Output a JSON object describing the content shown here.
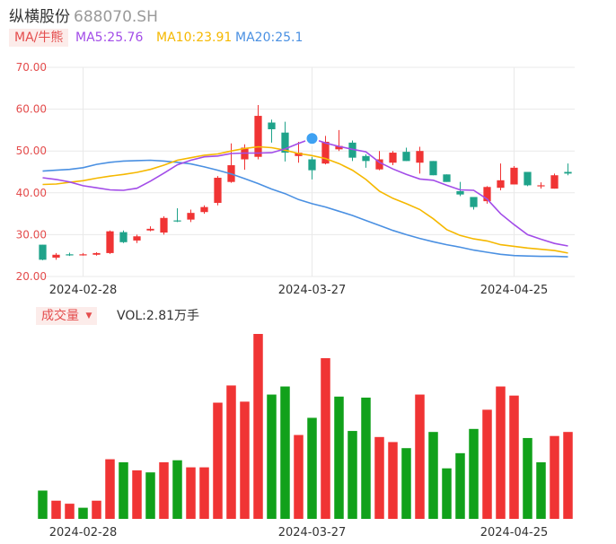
{
  "header": {
    "name": "纵横股份",
    "code": "688070.SH"
  },
  "legend": {
    "ma_tag": "MA/牛熊",
    "ma5": "MA5:25.76",
    "ma10": "MA10:23.91",
    "ma20": "MA20:25.1"
  },
  "volume": {
    "tag": "成交量",
    "label": "VOL:2.81万手"
  },
  "colors": {
    "up": "#f03434",
    "down": "#1fa38a",
    "vol_down": "#11a11b",
    "ma5": "#a24ce8",
    "ma10": "#f5b800",
    "ma20": "#4a90e2",
    "axis_label": "#e44d4d",
    "grid": "#e9e9e9"
  },
  "chart_data": [
    {
      "type": "candlestick",
      "title": "",
      "ylim": [
        20,
        70
      ],
      "y_ticks": [
        "70.00",
        "60.00",
        "50.00",
        "40.00",
        "30.00",
        "20.00"
      ],
      "x_tick_labels": [
        {
          "index": 3,
          "label": "2024-02-28"
        },
        {
          "index": 20,
          "label": "2024-03-27"
        },
        {
          "index": 35,
          "label": "2024-04-25"
        }
      ],
      "grid": true,
      "ohlc": [
        [
          27.6,
          27.6,
          23.9,
          24.0
        ],
        [
          24.5,
          25.6,
          24.0,
          25.2
        ],
        [
          25.3,
          25.7,
          24.9,
          25.2
        ],
        [
          25.3,
          25.6,
          25.0,
          25.3
        ],
        [
          25.2,
          25.8,
          25.0,
          25.6
        ],
        [
          25.6,
          31.0,
          25.4,
          30.8
        ],
        [
          30.6,
          31.0,
          28.0,
          28.2
        ],
        [
          28.6,
          30.0,
          28.0,
          29.6
        ],
        [
          31.0,
          32.0,
          30.8,
          31.4
        ],
        [
          30.5,
          34.4,
          30.0,
          34.0
        ],
        [
          33.4,
          36.3,
          33.0,
          33.3
        ],
        [
          33.6,
          36.0,
          33.0,
          35.2
        ],
        [
          35.4,
          37.0,
          35.0,
          36.6
        ],
        [
          37.6,
          44.0,
          37.0,
          43.6
        ],
        [
          42.6,
          51.8,
          42.4,
          46.6
        ],
        [
          48.0,
          51.6,
          45.5,
          50.8
        ],
        [
          48.6,
          61.0,
          48.0,
          58.4
        ],
        [
          56.8,
          57.5,
          52.0,
          55.2
        ],
        [
          54.4,
          57.0,
          47.5,
          49.6
        ],
        [
          48.8,
          52.2,
          47.2,
          49.6
        ],
        [
          48.0,
          48.6,
          43.2,
          45.4
        ],
        [
          47.0,
          53.6,
          46.8,
          52.2
        ],
        [
          50.4,
          55.0,
          50.0,
          51.2
        ],
        [
          52.0,
          52.5,
          47.6,
          48.4
        ],
        [
          48.8,
          49.2,
          46.0,
          47.6
        ],
        [
          45.6,
          50.0,
          45.4,
          48.0
        ],
        [
          47.2,
          50.0,
          46.6,
          49.6
        ],
        [
          49.8,
          50.8,
          47.6,
          47.6
        ],
        [
          47.2,
          51.0,
          44.6,
          50.0
        ],
        [
          47.6,
          47.6,
          44.2,
          44.2
        ],
        [
          44.4,
          44.4,
          42.6,
          42.6
        ],
        [
          40.4,
          42.6,
          39.2,
          39.6
        ],
        [
          39.0,
          39.0,
          36.0,
          36.6
        ],
        [
          38.0,
          41.6,
          37.4,
          41.4
        ],
        [
          41.2,
          47.0,
          40.6,
          43.0
        ],
        [
          42.0,
          46.4,
          42.0,
          46.0
        ],
        [
          45.0,
          45.0,
          41.6,
          41.8
        ],
        [
          41.6,
          42.5,
          41.0,
          41.8
        ],
        [
          41.0,
          44.6,
          41.0,
          44.2
        ],
        [
          45.0,
          47.0,
          44.2,
          44.6
        ]
      ],
      "ma5": [
        43.6,
        43.2,
        42.6,
        41.7,
        41.2,
        40.7,
        40.6,
        41.1,
        42.8,
        44.7,
        46.7,
        47.8,
        48.6,
        48.8,
        49.4,
        49.5,
        49.5,
        49.6,
        50.5,
        51.8,
        53.0,
        51.9,
        51.1,
        50.4,
        49.8,
        47.3,
        45.7,
        44.4,
        43.3,
        43.0,
        41.8,
        40.7,
        40.6,
        38.5,
        35.0,
        32.4,
        30.0,
        28.9,
        27.9,
        27.3
      ],
      "ma10": [
        42.0,
        42.1,
        42.5,
        42.9,
        43.5,
        44.0,
        44.4,
        44.9,
        45.6,
        46.6,
        47.8,
        48.4,
        49.0,
        49.3,
        50.0,
        50.6,
        51.0,
        50.8,
        50.2,
        49.4,
        48.9,
        48.2,
        47.0,
        45.4,
        43.2,
        40.4,
        38.7,
        37.4,
        36.0,
        33.8,
        31.2,
        29.8,
        29.0,
        28.5,
        27.6,
        27.2,
        26.8,
        26.5,
        26.2,
        25.6
      ],
      "ma20": [
        45.2,
        45.4,
        45.6,
        46.0,
        46.8,
        47.3,
        47.6,
        47.7,
        47.8,
        47.6,
        47.3,
        46.9,
        46.2,
        45.4,
        44.5,
        43.4,
        42.2,
        40.9,
        39.8,
        38.4,
        37.4,
        36.6,
        35.6,
        34.6,
        33.4,
        32.2,
        31.0,
        30.0,
        29.1,
        28.3,
        27.6,
        27.0,
        26.3,
        25.8,
        25.3,
        25.0,
        24.9,
        24.8,
        24.8,
        24.7
      ]
    },
    {
      "type": "bar",
      "title": "",
      "series": [
        {
          "values": [
            2.8,
            1.8,
            1.5,
            1.1,
            1.8,
            5.9,
            5.6,
            4.8,
            4.6,
            5.6,
            5.8,
            5.1,
            5.1,
            11.5,
            13.2,
            11.6,
            18.3,
            12.3,
            13.1,
            8.3,
            10.0,
            15.9,
            12.1,
            8.7,
            12.0,
            8.1,
            7.6,
            7.0,
            12.3,
            8.6,
            5.0,
            6.5,
            8.9,
            10.8,
            13.1,
            12.2,
            8.0,
            5.6,
            8.2,
            8.6
          ]
        }
      ],
      "direction": [
        "down",
        "up",
        "up",
        "down",
        "up",
        "up",
        "down",
        "up",
        "down",
        "up",
        "down",
        "up",
        "up",
        "up",
        "up",
        "up",
        "up",
        "down",
        "down",
        "up",
        "down",
        "up",
        "down",
        "down",
        "down",
        "up",
        "up",
        "down",
        "up",
        "down",
        "down",
        "down",
        "down",
        "up",
        "up",
        "up",
        "down",
        "down",
        "up",
        "up"
      ],
      "unit": "万手"
    }
  ]
}
